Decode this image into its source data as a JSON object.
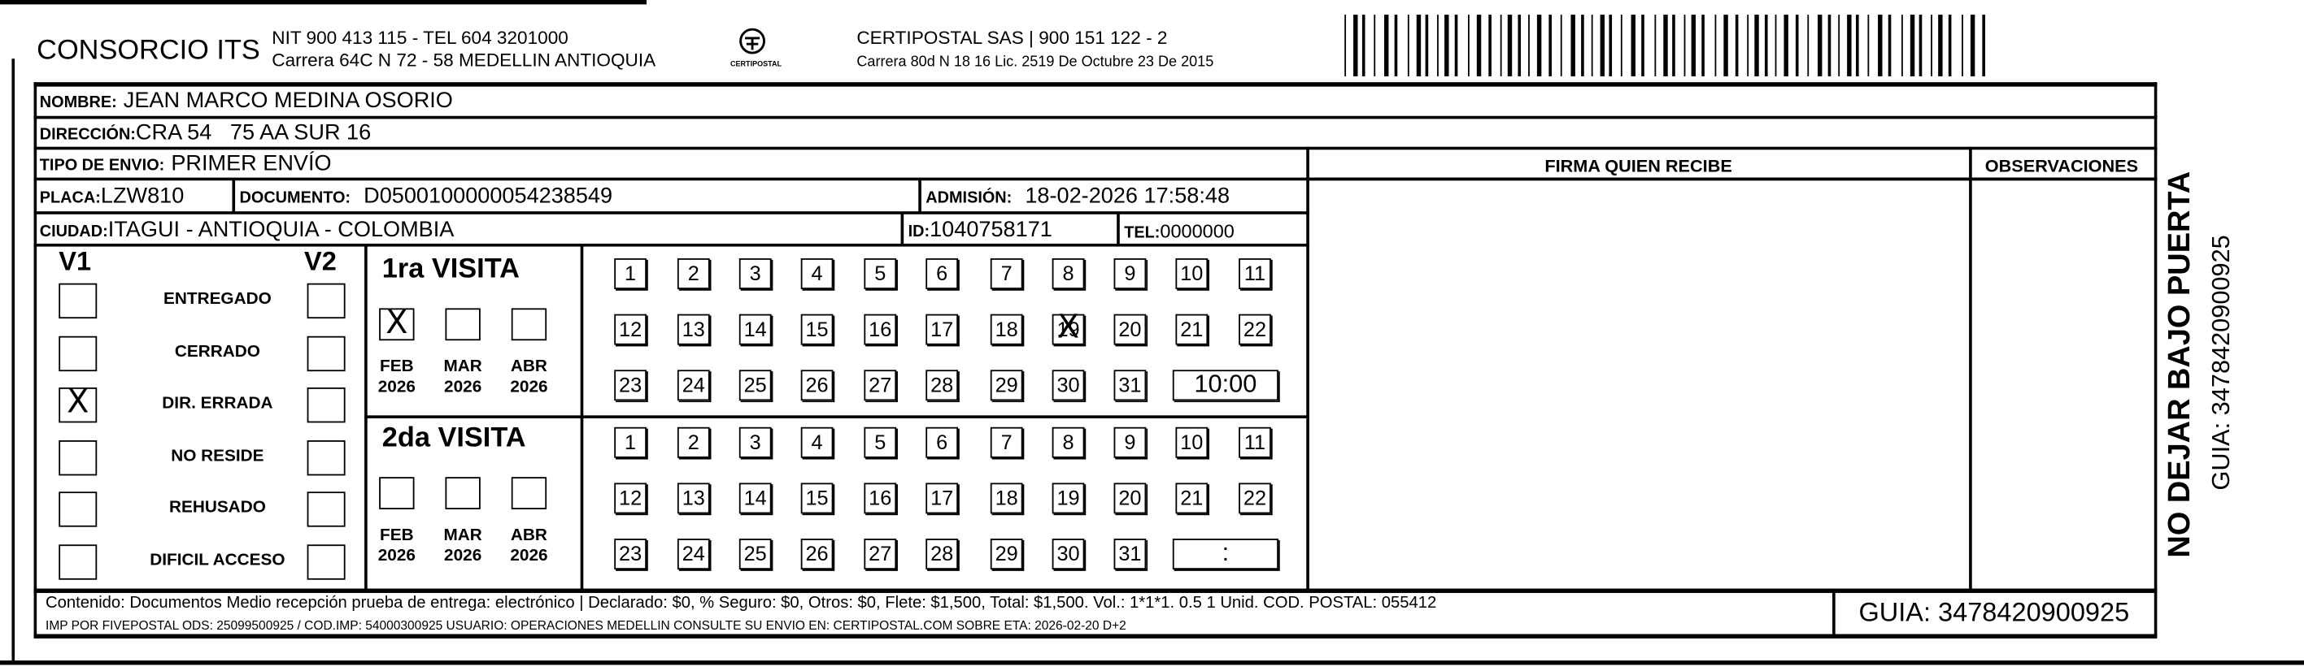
{
  "header": {
    "company": "CONSORCIO ITS",
    "company_line1": "NIT 900 413 115 - TEL 604 3201000",
    "company_line2": "Carrera 64C N 72 - 58 MEDELLIN ANTIOQUIA",
    "logo_text": "CERTIPOSTAL",
    "carrier_line1": "CERTIPOSTAL SAS | 900 151 122 - 2",
    "carrier_line2": "Carrera 80d N 18 16  Lic. 2519 De Octubre 23 De 2015",
    "barcode_value": "3478420900925"
  },
  "fields": {
    "nombre_label": "NOMBRE:",
    "nombre": "JEAN MARCO MEDINA OSORIO",
    "direccion_label": "DIRECCIÓN:",
    "direccion": "CRA 54   75 AA SUR 16",
    "tipo_label": "TIPO DE ENVIO:",
    "tipo": "PRIMER ENVÍO",
    "placa_label": "PLACA:",
    "placa": "LZW810",
    "documento_label": "DOCUMENTO:",
    "documento": "D0500100000054238549",
    "admision_label": "ADMISIÓN:",
    "admision": "18-02-2026 17:58:48",
    "ciudad_label": "CIUDAD:",
    "ciudad": "ITAGUI - ANTIOQUIA - COLOMBIA",
    "id_label": "ID:",
    "id": "1040758171",
    "tel_label": "TEL:",
    "tel": "0000000"
  },
  "signature": {
    "firma_label": "FIRMA QUIEN RECIBE",
    "observaciones_label": "OBSERVACIONES"
  },
  "side": {
    "warning": "NO DEJAR BAJO PUERTA",
    "guia": "GUIA: 3478420900925"
  },
  "status": {
    "v1_label": "V1",
    "v2_label": "V2",
    "options": [
      {
        "label": "ENTREGADO",
        "v1": false,
        "v2": false
      },
      {
        "label": "CERRADO",
        "v1": false,
        "v2": false
      },
      {
        "label": "DIR. ERRADA",
        "v1": true,
        "v2": false
      },
      {
        "label": "NO RESIDE",
        "v1": false,
        "v2": false
      },
      {
        "label": "REHUSADO",
        "v1": false,
        "v2": false
      },
      {
        "label": "DIFICIL ACCESO",
        "v1": false,
        "v2": false
      }
    ]
  },
  "visits": [
    {
      "title": "1ra VISITA",
      "months": [
        {
          "m": "FEB",
          "y": "2026",
          "checked": true
        },
        {
          "m": "MAR",
          "y": "2026",
          "checked": false
        },
        {
          "m": "ABR",
          "y": "2026",
          "checked": false
        }
      ],
      "crossed_day": 19,
      "time": "10:00"
    },
    {
      "title": "2da VISITA",
      "months": [
        {
          "m": "FEB",
          "y": "2026",
          "checked": false
        },
        {
          "m": "MAR",
          "y": "2026",
          "checked": false
        },
        {
          "m": "ABR",
          "y": "2026",
          "checked": false
        }
      ],
      "crossed_day": null,
      "time": ":"
    }
  ],
  "footer": {
    "line1": "Contenido: Documentos Medio recepción prueba de entrega: electrónico | Declarado: $0, % Seguro: $0, Otros: $0, Flete: $1,500, Total: $1,500. Vol.: 1*1*1. 0.5  1 Unid. COD. POSTAL: 055412",
    "line2": "IMP POR FIVEPOSTAL ODS: 25099500925 / COD.IMP: 54000300925 USUARIO: OPERACIONES MEDELLIN CONSULTE SU ENVIO EN: CERTIPOSTAL.COM SOBRE ETA: 2026-02-20 D+2",
    "guia": "GUIA: 3478420900925"
  }
}
